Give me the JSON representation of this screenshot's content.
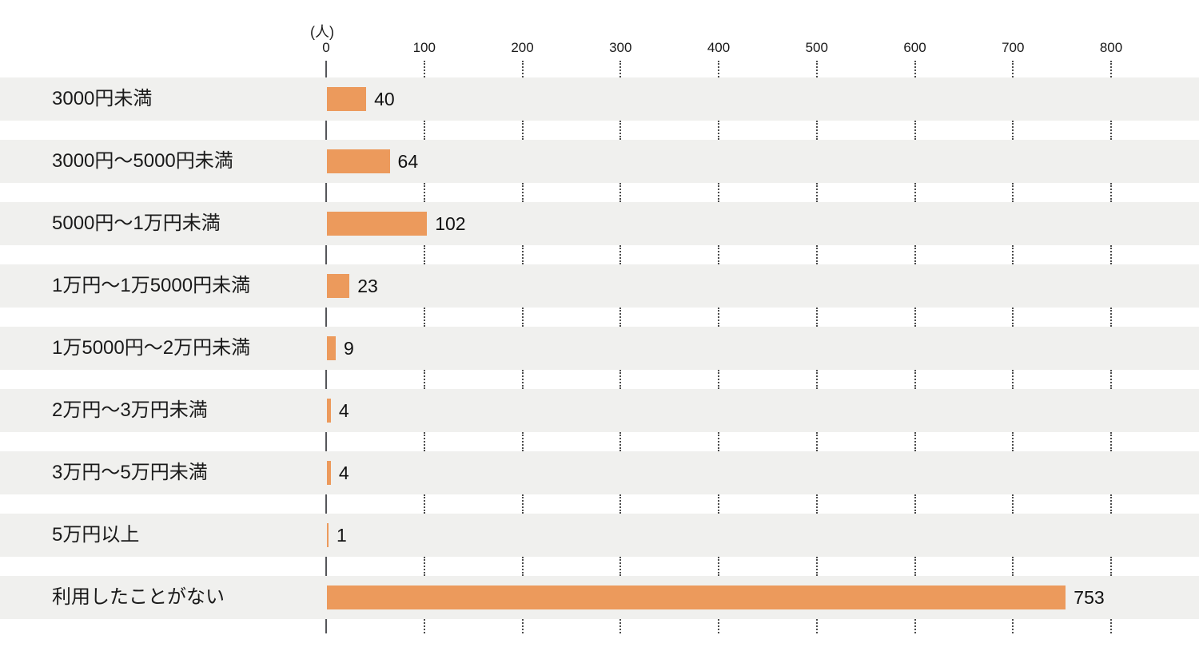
{
  "chart_data": {
    "type": "bar",
    "orientation": "horizontal",
    "title": "",
    "unit_label": "(人)",
    "categories": [
      "3000円未満",
      "3000円〜5000円未満",
      "5000円〜1万円未満",
      "1万円〜1万5000円未満",
      "1万5000円〜2万円未満",
      "2万円〜3万円未満",
      "3万円〜5万円未満",
      "5万円以上",
      "利用したことがない"
    ],
    "values": [
      40,
      64,
      102,
      23,
      9,
      4,
      4,
      1,
      753
    ],
    "xlabel": "(人)",
    "ylabel": "",
    "xlim": [
      0,
      880
    ],
    "xticks": [
      0,
      100,
      200,
      300,
      400,
      500,
      600,
      700,
      800
    ],
    "grid": "dotted-vertical",
    "legend": "none",
    "colors": {
      "bar": "#ec9a5c",
      "row_band": "#f0f0ee",
      "axis_line": "#55565a",
      "gridline": "#4b4b4b",
      "text": "#1a1a1a"
    }
  }
}
